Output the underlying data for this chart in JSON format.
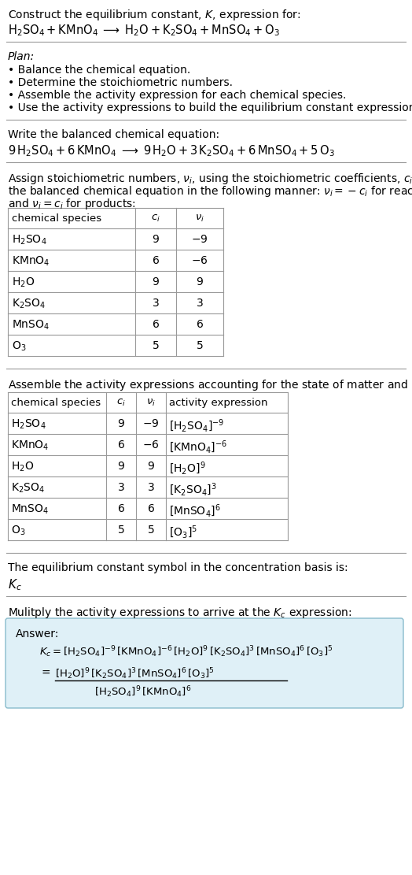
{
  "bg_color": "#ffffff",
  "text_color": "#000000",
  "title_line1": "Construct the equilibrium constant, $K$, expression for:",
  "title_line2": "$\\mathrm{H_2SO_4 + KMnO_4 \\;\\longrightarrow\\; H_2O + K_2SO_4 + MnSO_4 + O_3}$",
  "plan_header": "Plan:",
  "plan_items": [
    "• Balance the chemical equation.",
    "• Determine the stoichiometric numbers.",
    "• Assemble the activity expression for each chemical species.",
    "• Use the activity expressions to build the equilibrium constant expression."
  ],
  "balanced_header": "Write the balanced chemical equation:",
  "balanced_eq": "$\\mathrm{9\\,H_2SO_4 + 6\\,KMnO_4 \\;\\longrightarrow\\; 9\\,H_2O + 3\\,K_2SO_4 + 6\\,MnSO_4 + 5\\,O_3}$",
  "stoich_intro1": "Assign stoichiometric numbers, $\\nu_i$, using the stoichiometric coefficients, $c_i$, from",
  "stoich_intro2": "the balanced chemical equation in the following manner: $\\nu_i = -c_i$ for reactants",
  "stoich_intro3": "and $\\nu_i = c_i$ for products:",
  "table1_headers": [
    "chemical species",
    "$c_i$",
    "$\\nu_i$"
  ],
  "table1_data": [
    [
      "$\\mathrm{H_2SO_4}$",
      "9",
      "$-9$"
    ],
    [
      "$\\mathrm{KMnO_4}$",
      "6",
      "$-6$"
    ],
    [
      "$\\mathrm{H_2O}$",
      "9",
      "9"
    ],
    [
      "$\\mathrm{K_2SO_4}$",
      "3",
      "3"
    ],
    [
      "$\\mathrm{MnSO_4}$",
      "6",
      "6"
    ],
    [
      "$\\mathrm{O_3}$",
      "5",
      "5"
    ]
  ],
  "activity_intro": "Assemble the activity expressions accounting for the state of matter and $\\nu_i$:",
  "table2_headers": [
    "chemical species",
    "$c_i$",
    "$\\nu_i$",
    "activity expression"
  ],
  "table2_data": [
    [
      "$\\mathrm{H_2SO_4}$",
      "9",
      "$-9$",
      "$[\\mathrm{H_2SO_4}]^{-9}$"
    ],
    [
      "$\\mathrm{KMnO_4}$",
      "6",
      "$-6$",
      "$[\\mathrm{KMnO_4}]^{-6}$"
    ],
    [
      "$\\mathrm{H_2O}$",
      "9",
      "9",
      "$[\\mathrm{H_2O}]^{9}$"
    ],
    [
      "$\\mathrm{K_2SO_4}$",
      "3",
      "3",
      "$[\\mathrm{K_2SO_4}]^{3}$"
    ],
    [
      "$\\mathrm{MnSO_4}$",
      "6",
      "6",
      "$[\\mathrm{MnSO_4}]^{6}$"
    ],
    [
      "$\\mathrm{O_3}$",
      "5",
      "5",
      "$[\\mathrm{O_3}]^{5}$"
    ]
  ],
  "kc_intro": "The equilibrium constant symbol in the concentration basis is:",
  "kc_symbol": "$K_c$",
  "multiply_intro": "Mulitply the activity expressions to arrive at the $K_c$ expression:",
  "answer_box_color": "#dff0f7",
  "answer_label": "Answer:",
  "answer_line1": "$K_c = [\\mathrm{H_2SO_4}]^{-9}\\,[\\mathrm{KMnO_4}]^{-6}\\,[\\mathrm{H_2O}]^{9}\\,[\\mathrm{K_2SO_4}]^{3}\\,[\\mathrm{MnSO_4}]^{6}\\,[\\mathrm{O_3}]^{5}$",
  "answer_eq_prefix": "$=$",
  "answer_line2_num": "$[\\mathrm{H_2O}]^{9}\\,[\\mathrm{K_2SO_4}]^{3}\\,[\\mathrm{MnSO_4}]^{6}\\,[\\mathrm{O_3}]^{5}$",
  "answer_line2_den": "$[\\mathrm{H_2SO_4}]^{9}\\,[\\mathrm{KMnO_4}]^{6}$",
  "sep_color": "#999999",
  "table_line_color": "#999999"
}
